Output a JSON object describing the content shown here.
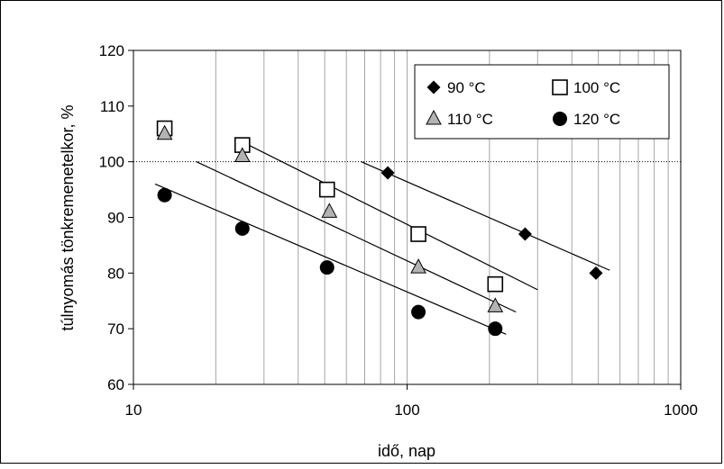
{
  "chart_data": {
    "type": "scatter",
    "title": "",
    "xlabel": "idő, nap",
    "ylabel": "túlnyomás tönkremenetelkor, %",
    "xscale": "log",
    "xlim": [
      10,
      1000
    ],
    "ylim": [
      60,
      120
    ],
    "x_ticks": [
      "10",
      "100",
      "1000"
    ],
    "y_ticks": [
      "60",
      "70",
      "80",
      "90",
      "100",
      "110",
      "120"
    ],
    "grid": "vertical log gridlines",
    "reference_line": {
      "y": 100,
      "style": "dotted"
    },
    "legend_position": "top-right",
    "series": [
      {
        "name": "90 °C",
        "marker": "diamond",
        "color": "#000000",
        "x": [
          85,
          270,
          490
        ],
        "y": [
          98,
          87,
          80
        ],
        "trend": {
          "x": [
            68,
            550
          ],
          "y": [
            100,
            80.5
          ]
        }
      },
      {
        "name": "100 °C",
        "marker": "square-open",
        "color": "#ffffff",
        "x": [
          13,
          25,
          51,
          110,
          210
        ],
        "y": [
          106,
          103,
          95,
          87,
          78
        ],
        "trend": {
          "x": [
            24,
            300
          ],
          "y": [
            104,
            77
          ]
        }
      },
      {
        "name": "110 °C",
        "marker": "triangle",
        "color": "#b3b3b3",
        "x": [
          13,
          25,
          52,
          110,
          210
        ],
        "y": [
          105,
          101,
          91,
          81,
          74
        ],
        "trend": {
          "x": [
            17,
            250
          ],
          "y": [
            100,
            73
          ]
        }
      },
      {
        "name": "120 °C",
        "marker": "circle",
        "color": "#000000",
        "x": [
          13,
          25,
          51,
          110,
          210
        ],
        "y": [
          94,
          88,
          81,
          73,
          70
        ],
        "trend": {
          "x": [
            12,
            230
          ],
          "y": [
            96,
            69
          ]
        }
      }
    ]
  }
}
